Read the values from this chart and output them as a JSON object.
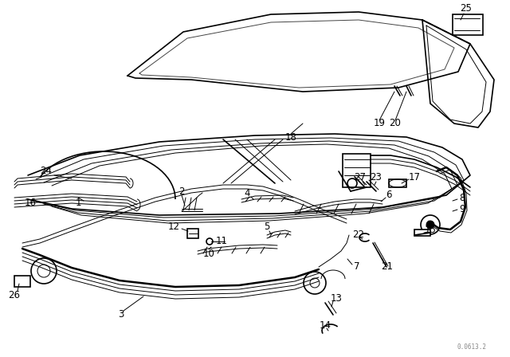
{
  "bg_color": "#ffffff",
  "line_color": "#000000",
  "fig_width": 6.4,
  "fig_height": 4.48,
  "dpi": 100,
  "watermark": "0.0613.2"
}
